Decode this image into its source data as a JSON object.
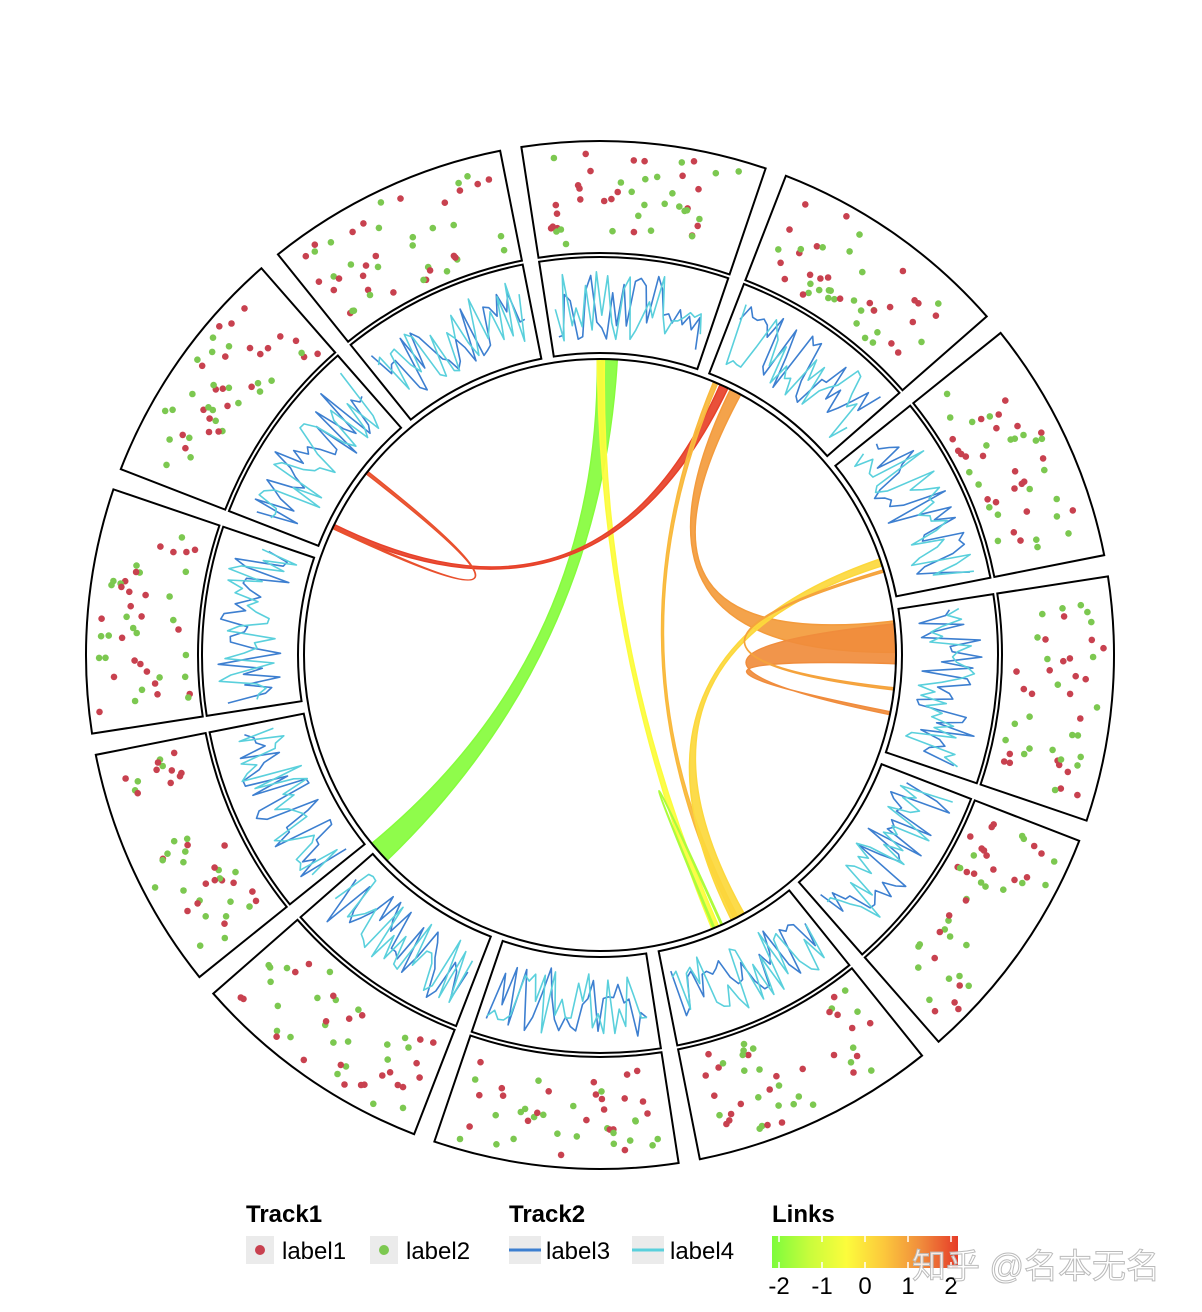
{
  "watermark": "知乎 @名本无名",
  "colors": {
    "label1": "#c8414f",
    "label2": "#7cc850",
    "label3": "#3d7fd0",
    "label4": "#5ad0dc",
    "grad_stops": [
      "#7cfc3c",
      "#c8fc3c",
      "#fcfc3c",
      "#fcc83c",
      "#f08c3c",
      "#e63c28"
    ]
  },
  "chart_data": {
    "type": "circos",
    "sectors": 12,
    "tracks": [
      {
        "name": "Track1",
        "kind": "scatter",
        "legend": [
          {
            "label": "label1",
            "color": "#c8414f"
          },
          {
            "label": "label2",
            "color": "#7cc850"
          }
        ]
      },
      {
        "name": "Track2",
        "kind": "line",
        "legend": [
          {
            "label": "label3",
            "color": "#3d7fd0"
          },
          {
            "label": "label4",
            "color": "#5ad0dc"
          }
        ]
      }
    ],
    "links": {
      "title": "Links",
      "scale_ticks": [
        "-2",
        "-1",
        "0",
        "1",
        "2"
      ],
      "range": [
        -2,
        2
      ],
      "items": [
        {
          "from": {
            "sector": 0,
            "pos": 0.3,
            "width": 0.14
          },
          "to": {
            "sector": 7,
            "pos": 0.9,
            "width": 0.16
          },
          "value": -1.9
        },
        {
          "from": {
            "sector": 0,
            "pos": 0.3,
            "width": 0.05
          },
          "to": {
            "sector": 5,
            "pos": 0.55,
            "width": 0.05
          },
          "value": -0.4
        },
        {
          "from": {
            "sector": 1,
            "pos": 0.1,
            "width": 0.06
          },
          "to": {
            "sector": 10,
            "pos": 0.15,
            "width": 0.03
          },
          "value": 1.95
        },
        {
          "from": {
            "sector": 10,
            "pos": 0.6,
            "width": 0.02
          },
          "to": {
            "sector": 10,
            "pos": 0.15,
            "width": 0.01
          },
          "value": 1.8
        },
        {
          "from": {
            "sector": 1,
            "pos": 0.18,
            "width": 0.08
          },
          "to": {
            "sector": 3,
            "pos": 0.08,
            "width": 0.22
          },
          "value": 1.0
        },
        {
          "from": {
            "sector": 1,
            "pos": 0.05,
            "width": 0.03
          },
          "to": {
            "sector": 5,
            "pos": 0.4,
            "width": 0.03
          },
          "value": 0.6
        },
        {
          "from": {
            "sector": 3,
            "pos": 0.1,
            "width": 0.28
          },
          "to": {
            "sector": 3,
            "pos": 0.72,
            "width": 0.02
          },
          "value": 1.2
        },
        {
          "from": {
            "sector": 2,
            "pos": 0.72,
            "width": 0.05
          },
          "to": {
            "sector": 5,
            "pos": 0.35,
            "width": 0.1
          },
          "value": 0.15
        },
        {
          "from": {
            "sector": 2,
            "pos": 0.8,
            "width": 0.015
          },
          "to": {
            "sector": 3,
            "pos": 0.55,
            "width": 0.015
          },
          "value": 0.9
        },
        {
          "from": {
            "sector": 5,
            "pos": 0.52,
            "width": 0.01
          },
          "to": {
            "sector": 5,
            "pos": 0.58,
            "width": 0.01
          },
          "value": -1.5
        }
      ]
    }
  }
}
